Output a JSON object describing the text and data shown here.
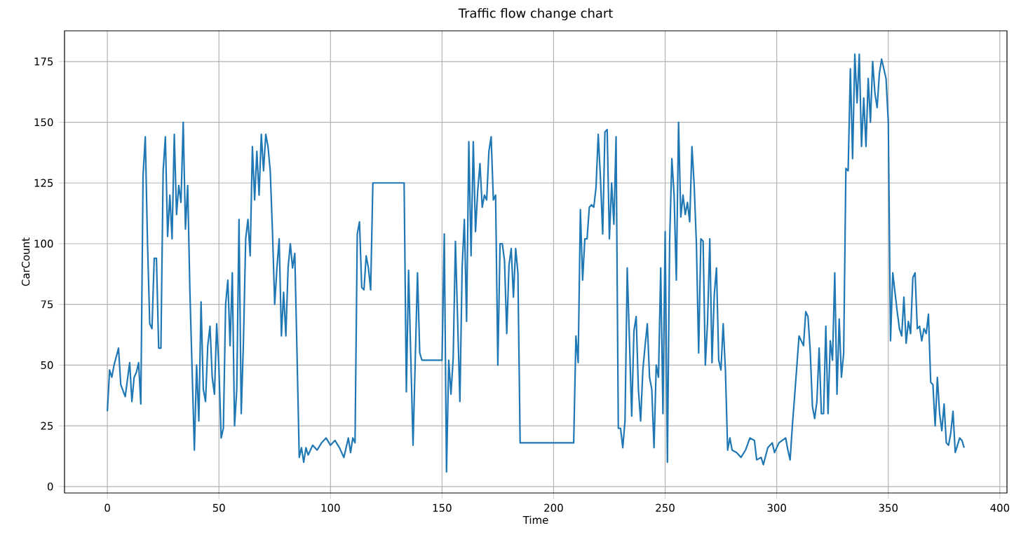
{
  "chart_data": {
    "type": "line",
    "title": "Traffic flow change chart",
    "xlabel": "Time",
    "ylabel": "CarCount",
    "color": "#1f77b4",
    "grid": true,
    "xlim": [
      -19.2,
      403.2
    ],
    "ylim": [
      -2.65,
      187.65
    ],
    "xticks": [
      0,
      50,
      100,
      150,
      200,
      250,
      300,
      350,
      400
    ],
    "yticks": [
      0,
      25,
      50,
      75,
      100,
      125,
      150,
      175
    ],
    "x": [
      0,
      1,
      2,
      3,
      5,
      6,
      8,
      10,
      11,
      12,
      13,
      14,
      15,
      16,
      17,
      18,
      19,
      20,
      21,
      22,
      23,
      24,
      25,
      26,
      27,
      28,
      29,
      30,
      31,
      32,
      33,
      34,
      35,
      36,
      37,
      39,
      40,
      41,
      42,
      43,
      44,
      45,
      46,
      47,
      48,
      49,
      50,
      51,
      52,
      53,
      54,
      55,
      56,
      57,
      58,
      59,
      60,
      61,
      62,
      63,
      64,
      65,
      66,
      67,
      68,
      69,
      70,
      71,
      72,
      73,
      74,
      75,
      76,
      77,
      78,
      79,
      80,
      81,
      82,
      83,
      84,
      85,
      86,
      87,
      88,
      89,
      90,
      92,
      94,
      96,
      98,
      100,
      102,
      104,
      106,
      108,
      109,
      110,
      111,
      112,
      113,
      114,
      115,
      116,
      117,
      118,
      119,
      133,
      134,
      135,
      137,
      139,
      140,
      141,
      150,
      151,
      152,
      153,
      154,
      155,
      156,
      158,
      159,
      160,
      161,
      162,
      163,
      164,
      165,
      166,
      167,
      168,
      169,
      170,
      171,
      172,
      173,
      174,
      175,
      176,
      177,
      178,
      179,
      180,
      181,
      182,
      183,
      184,
      185,
      209,
      210,
      211,
      212,
      213,
      214,
      215,
      216,
      217,
      218,
      219,
      220,
      221,
      222,
      223,
      224,
      225,
      226,
      227,
      228,
      229,
      230,
      231,
      232,
      233,
      234,
      235,
      236,
      237,
      238,
      239,
      240,
      241,
      242,
      243,
      244,
      245,
      246,
      247,
      248,
      249,
      250,
      251,
      252,
      253,
      254,
      255,
      256,
      257,
      258,
      259,
      260,
      261,
      262,
      263,
      264,
      265,
      266,
      267,
      268,
      269,
      270,
      271,
      272,
      273,
      274,
      275,
      276,
      277,
      278,
      279,
      280,
      282,
      284,
      286,
      288,
      290,
      291,
      293,
      294,
      296,
      298,
      299,
      301,
      304,
      305,
      306,
      307,
      308,
      310,
      312,
      313,
      314,
      315,
      316,
      317,
      318,
      319,
      320,
      321,
      322,
      323,
      324,
      325,
      326,
      327,
      328,
      329,
      330,
      331,
      332,
      333,
      334,
      335,
      336,
      337,
      338,
      339,
      340,
      341,
      342,
      343,
      344,
      345,
      346,
      347,
      348,
      349,
      350,
      351,
      352,
      353,
      354,
      355,
      356,
      357,
      358,
      359,
      360,
      361,
      362,
      363,
      364,
      365,
      366,
      367,
      368,
      369,
      370,
      371,
      372,
      373,
      374,
      375,
      376,
      377,
      378,
      379,
      380,
      381,
      382,
      383,
      384
    ],
    "values": [
      31,
      48,
      45,
      50,
      57,
      42,
      37,
      51,
      35,
      45,
      47,
      51,
      34,
      128,
      144,
      100,
      67,
      65,
      94,
      94,
      57,
      57,
      130,
      144,
      103,
      120,
      102,
      145,
      112,
      124,
      117,
      150,
      106,
      124,
      80,
      15,
      50,
      27,
      76,
      40,
      35,
      58,
      66,
      45,
      38,
      67,
      49,
      20,
      24,
      75,
      85,
      58,
      88,
      25,
      40,
      110,
      30,
      60,
      102,
      110,
      95,
      140,
      118,
      138,
      120,
      145,
      130,
      145,
      140,
      130,
      105,
      75,
      90,
      102,
      62,
      80,
      62,
      90,
      100,
      90,
      96,
      55,
      12,
      16,
      10,
      16,
      13,
      17,
      15,
      18,
      20,
      17,
      19,
      16,
      12,
      20,
      14,
      20,
      18,
      104,
      109,
      82,
      81,
      95,
      90,
      81,
      125,
      125,
      39,
      89,
      17,
      88,
      55,
      52,
      52,
      104,
      6,
      52,
      38,
      53,
      101,
      35,
      90,
      110,
      68,
      142,
      95,
      142,
      105,
      122,
      133,
      115,
      120,
      118,
      138,
      144,
      118,
      120,
      50,
      100,
      100,
      93,
      63,
      91,
      98,
      78,
      98,
      88,
      18,
      18,
      62,
      51,
      114,
      85,
      102,
      102,
      115,
      116,
      115,
      123,
      145,
      127,
      104,
      146,
      147,
      102,
      125,
      108,
      144,
      24,
      24,
      16,
      27,
      90,
      60,
      29,
      64,
      70,
      40,
      27,
      48,
      58,
      67,
      45,
      40,
      16,
      50,
      45,
      90,
      30,
      105,
      10,
      101,
      135,
      120,
      85,
      150,
      111,
      120,
      112,
      117,
      109,
      140,
      124,
      100,
      55,
      102,
      101,
      50,
      68,
      102,
      51,
      79,
      90,
      52,
      48,
      67,
      48,
      15,
      20,
      15,
      14,
      12,
      15,
      20,
      19,
      11,
      12,
      9,
      16,
      18,
      14,
      18,
      20,
      15,
      11,
      25,
      37,
      62,
      58,
      72,
      70,
      56,
      33,
      28,
      35,
      57,
      30,
      30,
      66,
      30,
      60,
      52,
      88,
      38,
      69,
      45,
      55,
      131,
      130,
      172,
      135,
      178,
      158,
      178,
      140,
      160,
      140,
      168,
      150,
      175,
      162,
      156,
      170,
      176,
      172,
      168,
      150,
      60,
      88,
      80,
      72,
      65,
      62,
      78,
      59,
      68,
      63,
      86,
      88,
      65,
      66,
      60,
      65,
      63,
      71,
      43,
      42,
      25,
      45,
      30,
      23,
      34,
      18,
      17,
      22,
      31,
      14,
      17,
      20,
      19,
      16
    ]
  }
}
